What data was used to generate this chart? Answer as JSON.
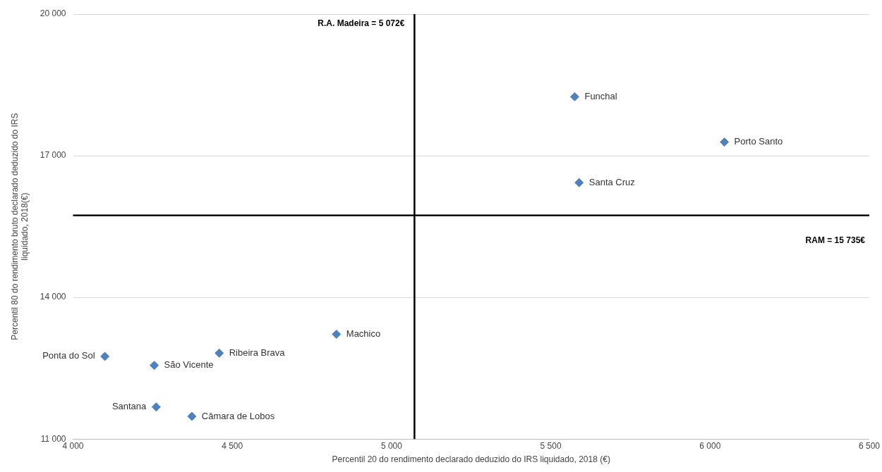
{
  "chart_data": {
    "type": "scatter",
    "xlabel": "Percentil 20 do rendimento declarado deduzido do IRS liquidado, 2018 (€)",
    "ylabel": "Percentil 80 do rendimento bruto declarado deduzido do IRS liquidado, 2018(€)",
    "x": [
      5575,
      6045,
      5589,
      4827,
      4459,
      4100,
      4255,
      4261,
      4373
    ],
    "series": [
      {
        "color": "#4f81bd",
        "values": [
          18250,
          17290,
          16430,
          13220,
          12820,
          12750,
          12560,
          11680,
          11480
        ]
      }
    ],
    "annotations": [
      {
        "text": "Funchal",
        "x": 5575,
        "y": 18250
      },
      {
        "text": "Porto Santo",
        "x": 6045,
        "y": 17290
      },
      {
        "text": "Santa Cruz",
        "x": 5589,
        "y": 16430
      },
      {
        "text": "Machico",
        "x": 4827,
        "y": 13220
      },
      {
        "text": "Ribeira Brava",
        "x": 4459,
        "y": 12820
      },
      {
        "text": "Ponta do Sol",
        "x": 4100,
        "y": 12750
      },
      {
        "text": "São Vicente",
        "x": 4255,
        "y": 12560
      },
      {
        "text": "Santana",
        "x": 4261,
        "y": 11680
      },
      {
        "text": "Câmara de Lobos",
        "x": 4373,
        "y": 11480
      }
    ],
    "ref_lines": [
      {
        "axis": "x",
        "value": 5072,
        "label": "R.A. Madeira = 5 072€",
        "color": "#000000"
      },
      {
        "axis": "y",
        "value": 15735,
        "label": "RAM = 15 735€",
        "color": "#000000"
      }
    ],
    "xlim": [
      4000,
      6500
    ],
    "xticks": [
      {
        "value": 4000,
        "label": "4 000"
      },
      {
        "value": 4500,
        "label": "4 500"
      },
      {
        "value": 5000,
        "label": "5 000"
      },
      {
        "value": 5500,
        "label": "5 500"
      },
      {
        "value": 6000,
        "label": "6 000"
      },
      {
        "value": 6500,
        "label": "6 500"
      }
    ],
    "ylim": [
      11000,
      20000
    ],
    "yticks": [
      {
        "value": 11000,
        "label": "11 000"
      },
      {
        "value": 14000,
        "label": "14 000"
      },
      {
        "value": 17000,
        "label": "17 000"
      },
      {
        "value": 20000,
        "label": "20 000"
      }
    ],
    "grid": "y",
    "legend": false,
    "marker": "diamond"
  }
}
